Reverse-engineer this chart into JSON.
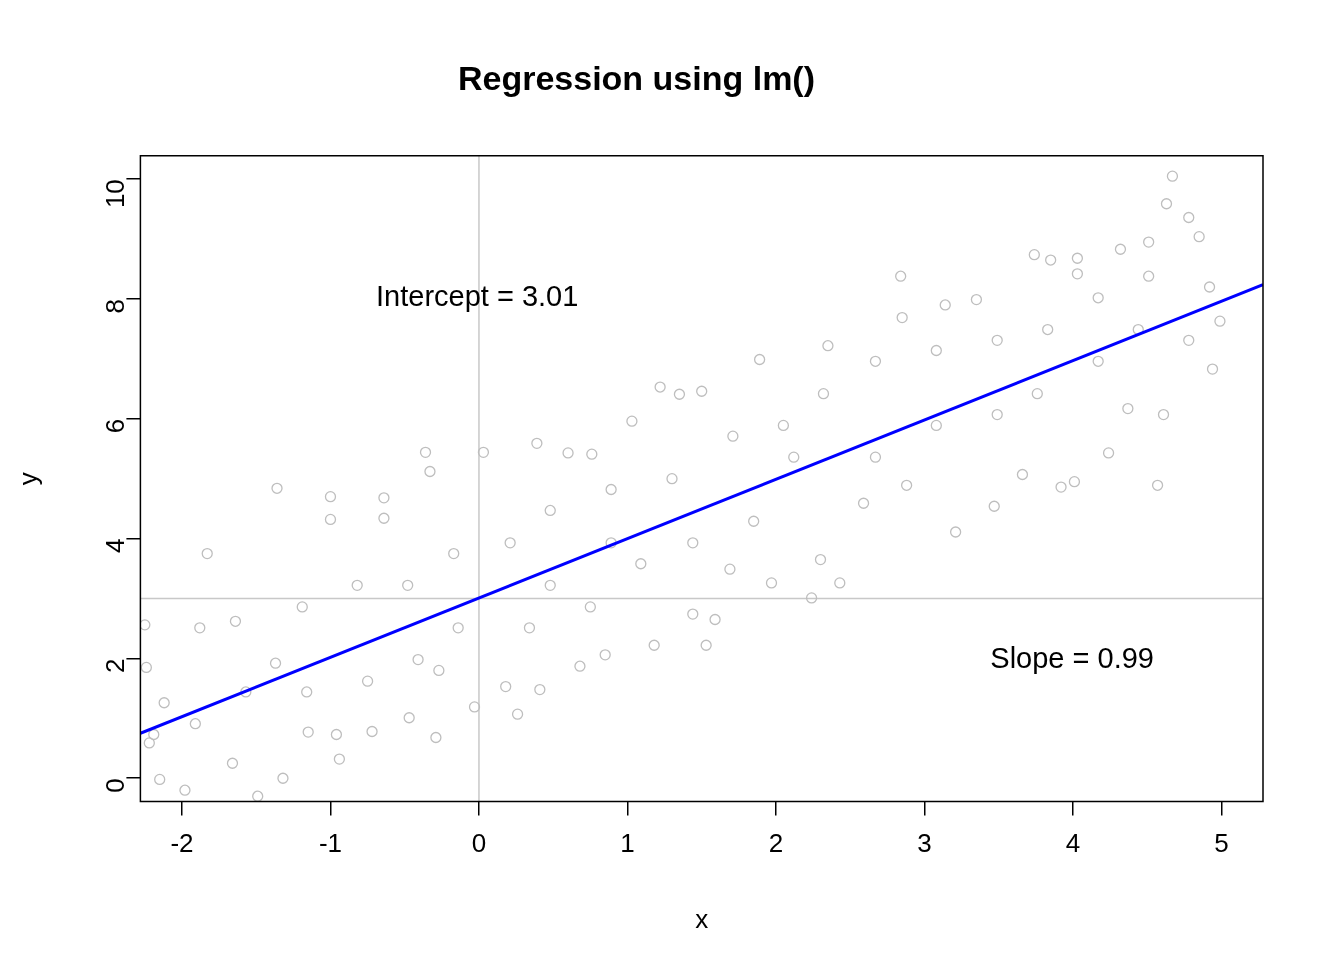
{
  "chart_data": {
    "type": "scatter",
    "title": "Regression using lm()",
    "xlabel": "x",
    "ylabel": "y",
    "xlim": [
      -2.28,
      5.28
    ],
    "ylim": [
      -0.39,
      10.39
    ],
    "xticks": [
      -2,
      -1,
      0,
      1,
      2,
      3,
      4,
      5
    ],
    "yticks": [
      0,
      2,
      4,
      6,
      8,
      10
    ],
    "grid": false,
    "legend": false,
    "series": [
      {
        "marker": "circle",
        "color": "#bebebe",
        "x": [
          -1.83,
          -1.36,
          -2.25,
          -2.24,
          -1.98,
          -1.49,
          -1.32,
          -1.88,
          -1.64,
          -1.0,
          -1.0,
          -0.64,
          -0.64,
          -0.36,
          -0.33,
          -0.94,
          -0.96,
          -0.29,
          -0.03,
          0.26,
          0.41,
          0.03,
          0.39,
          0.6,
          0.76,
          1.18,
          1.03,
          1.22,
          1.35,
          1.5,
          1.53,
          1.59,
          1.89,
          2.24,
          2.43,
          2.35,
          2.84,
          2.85,
          3.21,
          2.88,
          3.14,
          3.35,
          3.47,
          3.74,
          3.85,
          4.03,
          4.03,
          4.32,
          4.51,
          4.67,
          4.63,
          4.78,
          4.85,
          4.57,
          4.24,
          4.01,
          3.92,
          4.94,
          4.99,
          4.61,
          4.37,
          3.66,
          2.59,
          2.3,
          1.97,
          1.69,
          1.44,
          0.68,
          0.85,
          0.18,
          -0.47,
          -0.72,
          -1.15,
          -1.66,
          -2.15,
          -2.22,
          -2.12,
          -1.37,
          -1.19,
          -0.82,
          -0.48,
          -0.17,
          0.21,
          0.48,
          0.89,
          1.3,
          1.71,
          2.05,
          2.32,
          2.67,
          3.08,
          3.49,
          3.83,
          4.17,
          4.51,
          4.92,
          4.78,
          4.17,
          3.49,
          3.08,
          2.67,
          2.12,
          1.85,
          1.44,
          1.09,
          0.75,
          0.34,
          -0.14,
          -0.41,
          -0.75,
          -1.16,
          -1.57,
          -1.91,
          -2.19,
          -0.27,
          0.48,
          0.89,
          3.76,
          4.44
        ],
        "values": [
          3.75,
          4.84,
          2.56,
          1.85,
          -0.2,
          -0.3,
          0.0,
          2.51,
          2.62,
          4.7,
          4.32,
          4.68,
          4.34,
          5.44,
          5.12,
          0.32,
          0.73,
          0.68,
          1.19,
          1.07,
          1.48,
          5.44,
          5.59,
          5.43,
          5.41,
          2.22,
          5.96,
          6.53,
          6.41,
          6.46,
          2.22,
          2.65,
          6.99,
          3.01,
          3.26,
          7.22,
          8.38,
          7.69,
          4.11,
          4.89,
          7.9,
          7.99,
          4.54,
          8.74,
          8.65,
          8.68,
          8.42,
          8.83,
          8.95,
          10.05,
          9.59,
          9.36,
          9.04,
          4.89,
          5.43,
          4.95,
          4.86,
          6.83,
          7.63,
          6.07,
          6.17,
          5.07,
          4.59,
          3.65,
          3.26,
          3.49,
          2.74,
          1.87,
          2.06,
          1.53,
          1.01,
          0.78,
          0.77,
          0.25,
          -0.02,
          0.59,
          1.26,
          1.92,
          2.86,
          3.22,
          3.22,
          3.75,
          3.93,
          4.47,
          4.82,
          5.0,
          5.71,
          5.89,
          6.42,
          6.96,
          7.14,
          7.31,
          7.49,
          8.02,
          8.38,
          8.2,
          7.31,
          6.96,
          6.07,
          5.89,
          5.36,
          5.36,
          4.29,
          3.93,
          3.58,
          2.86,
          2.51,
          2.51,
          1.98,
          1.62,
          1.44,
          1.44,
          0.91,
          0.73,
          1.8,
          3.22,
          3.93,
          6.42,
          7.49
        ]
      },
      {
        "type": "line",
        "marker": "none",
        "color": "#0000ff",
        "x": [
          -2.28,
          5.28
        ],
        "values": [
          0.75,
          8.24
        ]
      }
    ],
    "ref_lines": [
      {
        "axis": "x",
        "value": 0,
        "color": "#c8c8c8"
      },
      {
        "axis": "y",
        "value": 3,
        "color": "#c8c8c8"
      }
    ],
    "annotations": [
      "Intercept = 3.01",
      "Slope = 0.99"
    ]
  }
}
